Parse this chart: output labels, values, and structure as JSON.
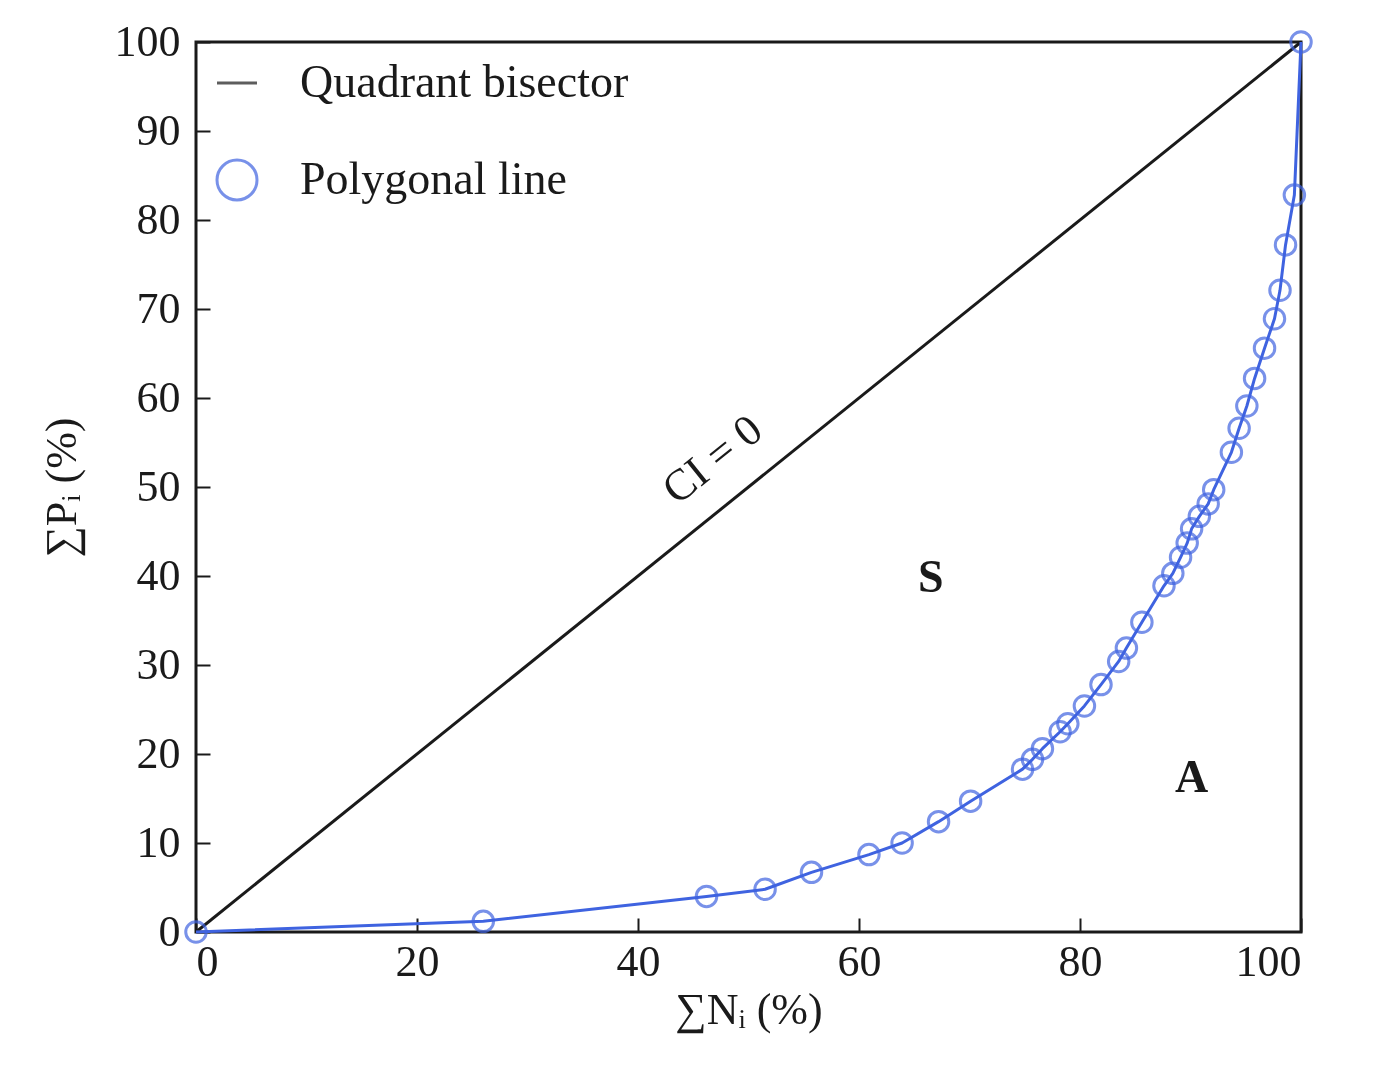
{
  "chart_data": {
    "type": "line",
    "xlabel": "∑Nᵢ (%)",
    "ylabel": "∑Pᵢ (%)",
    "xlim": [
      0,
      100
    ],
    "ylim": [
      0,
      100
    ],
    "xticks": [
      0,
      20,
      40,
      60,
      80,
      100
    ],
    "yticks": [
      0,
      10,
      20,
      30,
      40,
      50,
      60,
      70,
      80,
      90,
      100
    ],
    "grid": false,
    "legend": "top left",
    "series": [
      {
        "name": "Quadrant bisector",
        "color": "#1a1a1a",
        "marker": "none",
        "x": [
          0,
          100
        ],
        "values": [
          0,
          100
        ]
      },
      {
        "name": "Polygonal line",
        "color": "#3f63e0",
        "marker": "circle",
        "x": [
          0,
          26.0,
          46.2,
          51.5,
          55.7,
          60.9,
          63.9,
          67.2,
          70.1,
          74.8,
          75.7,
          76.6,
          78.2,
          78.9,
          80.4,
          81.9,
          83.5,
          84.2,
          85.6,
          87.6,
          88.4,
          89.1,
          89.7,
          90.1,
          90.8,
          91.6,
          92.1,
          93.7,
          94.4,
          95.1,
          95.8,
          96.7,
          97.6,
          98.1,
          98.6,
          99.4,
          100
        ],
        "values": [
          0,
          1.2,
          4.0,
          4.8,
          6.7,
          8.7,
          10.0,
          12.4,
          14.7,
          18.3,
          19.4,
          20.6,
          22.5,
          23.4,
          25.4,
          27.8,
          30.4,
          31.9,
          34.8,
          38.9,
          40.3,
          42.1,
          43.7,
          45.3,
          46.7,
          48.1,
          49.7,
          53.9,
          56.6,
          59.1,
          62.2,
          65.6,
          68.9,
          72.1,
          77.2,
          82.8,
          100
        ]
      }
    ],
    "annotations": [
      "CI = 0",
      "S",
      "A"
    ]
  }
}
